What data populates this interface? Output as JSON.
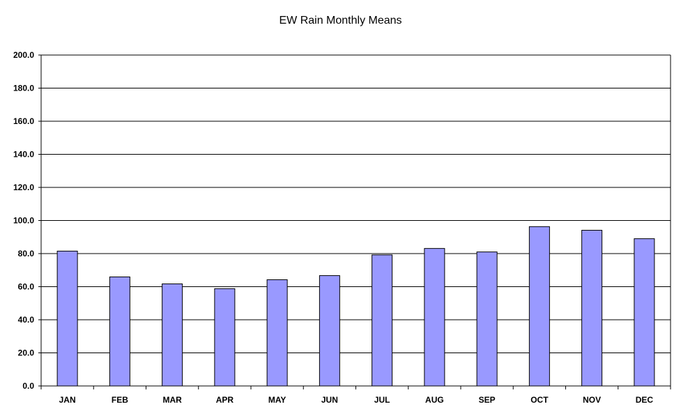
{
  "chart_data": {
    "type": "bar",
    "title": "EW Rain Monthly Means",
    "categories": [
      "JAN",
      "FEB",
      "MAR",
      "APR",
      "MAY",
      "JUN",
      "JUL",
      "AUG",
      "SEP",
      "OCT",
      "NOV",
      "DEC"
    ],
    "values": [
      81.5,
      65.9,
      61.7,
      58.8,
      64.2,
      66.7,
      79.2,
      83.1,
      81.0,
      96.3,
      94.1,
      89.0
    ],
    "ylim": [
      0,
      200
    ],
    "yticks": [
      "0.0",
      "20.0",
      "40.0",
      "60.0",
      "80.0",
      "100.0",
      "120.0",
      "140.0",
      "160.0",
      "180.0",
      "200.0"
    ],
    "ytick_values": [
      0,
      20,
      40,
      60,
      80,
      100,
      120,
      140,
      160,
      180,
      200
    ],
    "grid": true,
    "legend": "none",
    "colors": {
      "bar_fill": "#9999ff",
      "bar_stroke": "#000000",
      "gridline": "#000000"
    }
  }
}
